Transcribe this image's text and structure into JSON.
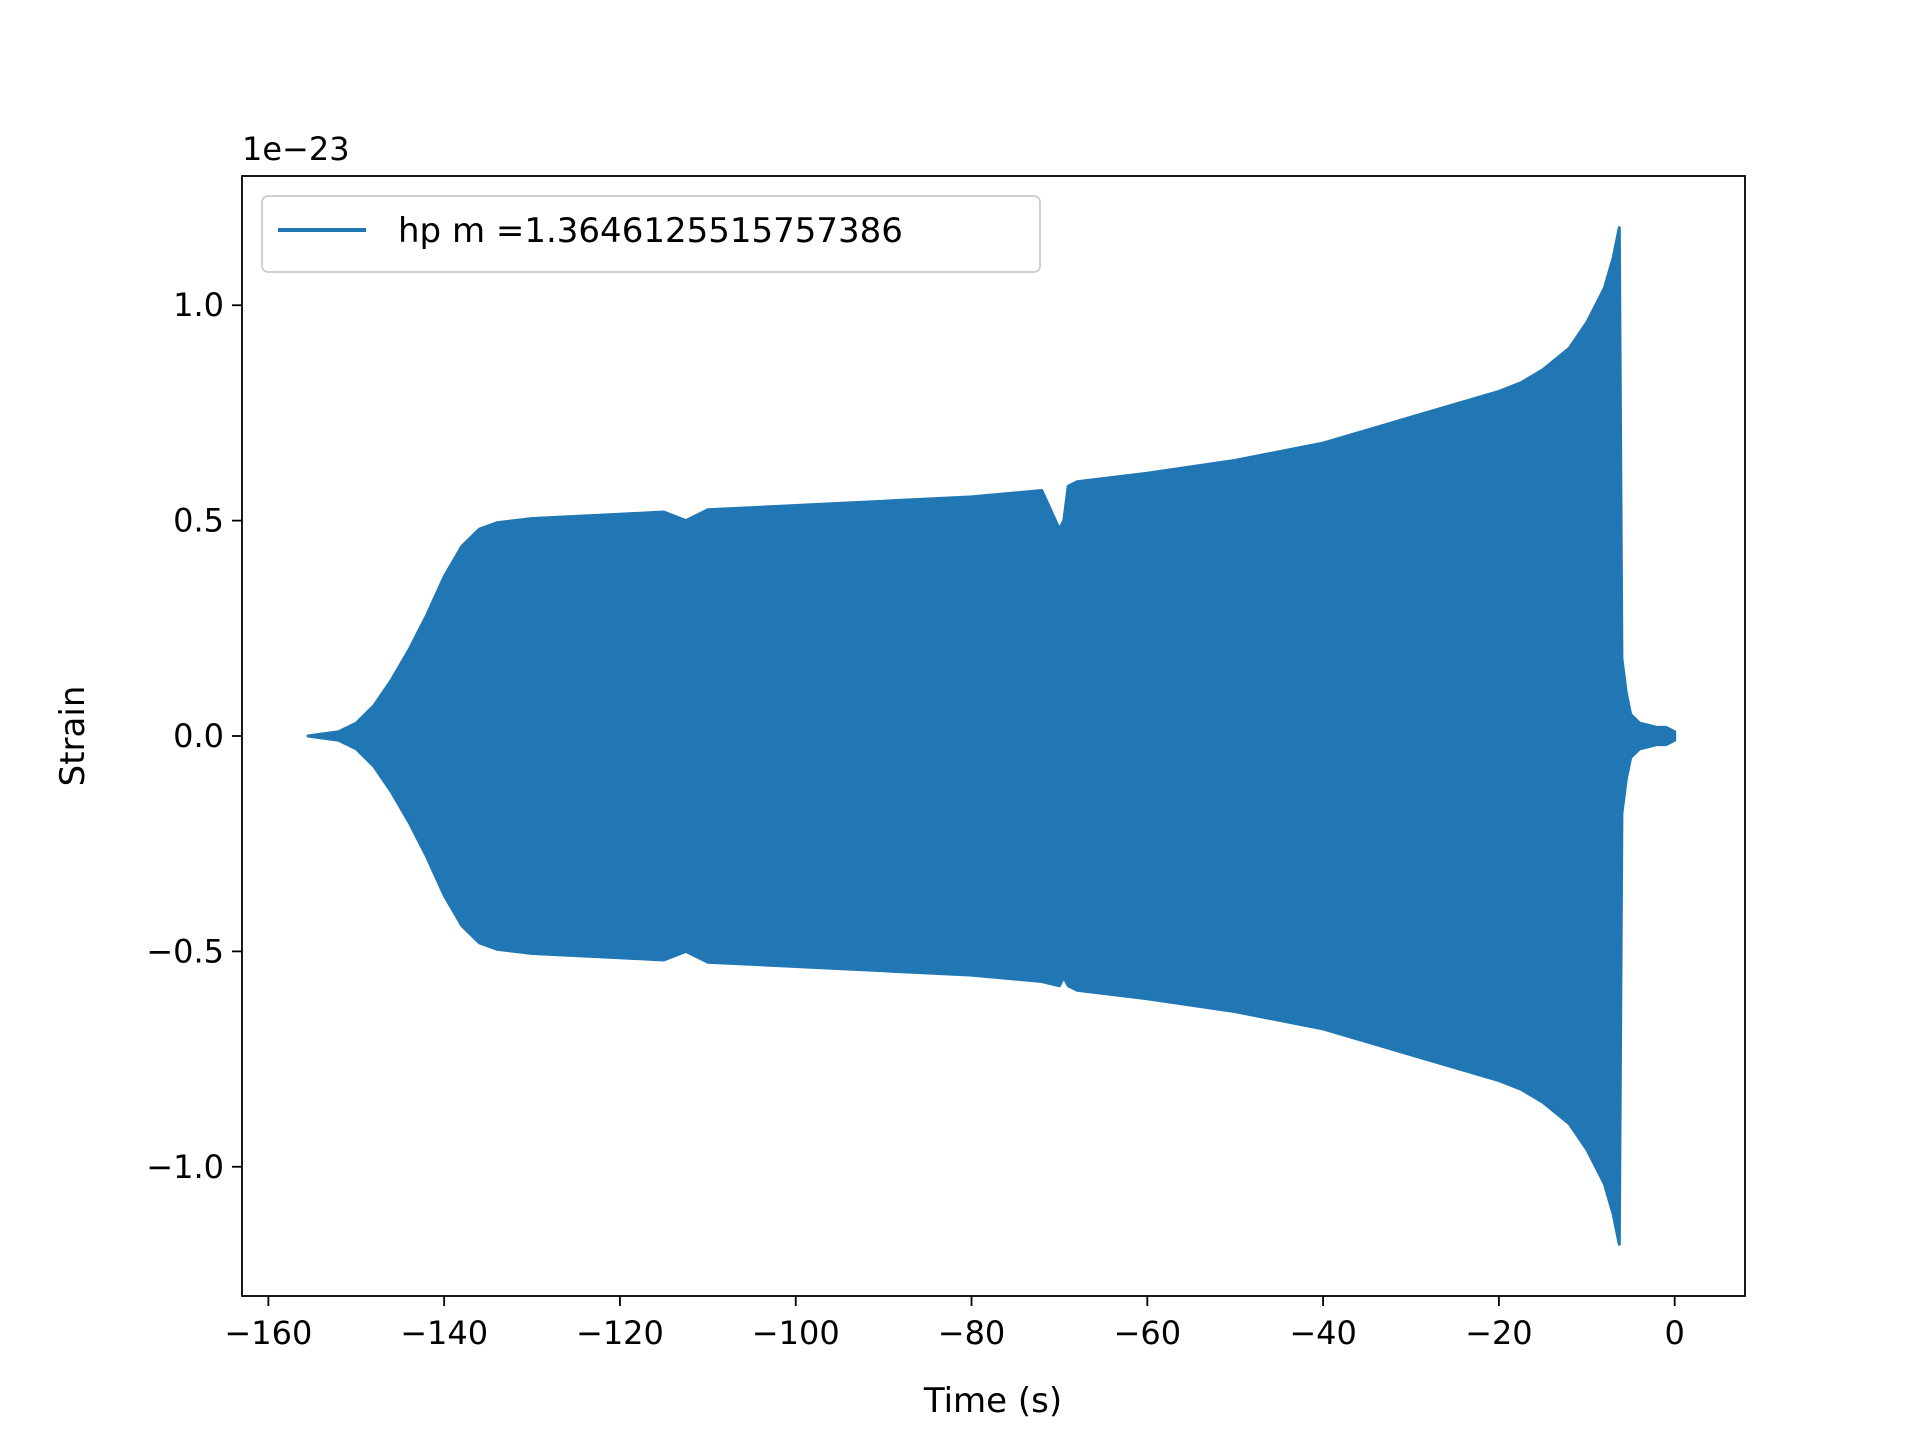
{
  "chart_data": {
    "type": "line",
    "title": "",
    "xlabel": "Time (s)",
    "ylabel": "Strain",
    "offset_text": "1e−23",
    "xlim": [
      -163,
      8
    ],
    "ylim": [
      -1.3,
      1.3
    ],
    "xticks": [
      -160,
      -140,
      -120,
      -100,
      -80,
      -60,
      -40,
      -20,
      0
    ],
    "xtick_labels": [
      "−160",
      "−140",
      "−120",
      "−100",
      "−80",
      "−60",
      "−40",
      "−20",
      "0"
    ],
    "yticks": [
      -1.0,
      -0.5,
      0.0,
      0.5,
      1.0
    ],
    "ytick_labels": [
      "−1.0",
      "−0.5",
      "0.0",
      "0.5",
      "1.0"
    ],
    "grid": false,
    "legend_position": "top-left",
    "series": [
      {
        "name": "hp m =1.3646125515757386",
        "color": "#2077b4",
        "envelope_t": [
          -155.5,
          -152,
          -150,
          -148,
          -146,
          -144,
          -142,
          -140,
          -138,
          -136,
          -134,
          -132,
          -130,
          -120,
          -115,
          -112.5,
          -110,
          -100,
          -90,
          -80,
          -72,
          -70,
          -69.5,
          -69,
          -68,
          -60,
          -50,
          -40,
          -30,
          -25,
          -20,
          -17.5,
          -15,
          -12,
          -10,
          -8,
          -7,
          -6.3,
          -6.0,
          -5.5,
          -5.0,
          -4,
          -3,
          -2,
          -1,
          0
        ],
        "envelope_upper": [
          0.0,
          0.01,
          0.03,
          0.07,
          0.13,
          0.2,
          0.28,
          0.37,
          0.44,
          0.48,
          0.495,
          0.5,
          0.505,
          0.515,
          0.52,
          0.5,
          0.525,
          0.535,
          0.545,
          0.555,
          0.57,
          0.48,
          0.5,
          0.58,
          0.59,
          0.61,
          0.64,
          0.68,
          0.74,
          0.77,
          0.8,
          0.82,
          0.85,
          0.9,
          0.96,
          1.04,
          1.11,
          1.18,
          0.18,
          0.1,
          0.05,
          0.03,
          0.025,
          0.02,
          0.02,
          0.01
        ],
        "envelope_lower": [
          0.0,
          -0.01,
          -0.03,
          -0.07,
          -0.13,
          -0.2,
          -0.28,
          -0.37,
          -0.44,
          -0.48,
          -0.495,
          -0.5,
          -0.505,
          -0.515,
          -0.52,
          -0.5,
          -0.525,
          -0.535,
          -0.545,
          -0.555,
          -0.57,
          -0.58,
          -0.56,
          -0.58,
          -0.59,
          -0.61,
          -0.64,
          -0.68,
          -0.74,
          -0.77,
          -0.8,
          -0.82,
          -0.85,
          -0.9,
          -0.96,
          -1.04,
          -1.11,
          -1.18,
          -0.18,
          -0.1,
          -0.05,
          -0.03,
          -0.025,
          -0.02,
          -0.02,
          -0.01
        ]
      }
    ]
  }
}
